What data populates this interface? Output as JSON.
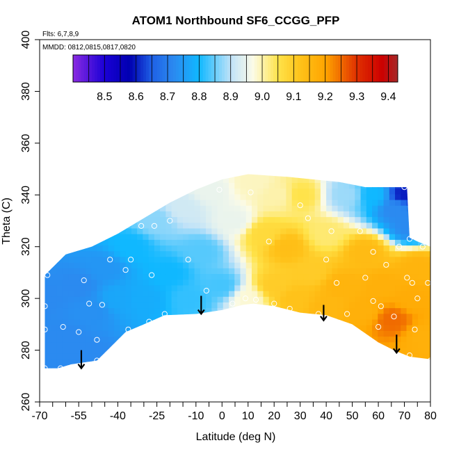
{
  "chart_data": {
    "type": "heatmap",
    "title": "ATOM1 Northbound SF6_CCGG_PFP",
    "xlabel": "Latitude (deg N)",
    "ylabel": "Theta (C)",
    "flights_note": "Flts: 6,7,8,9",
    "dates_note": "MMDD: 0812,0815,0817,0820",
    "xlim": [
      -70,
      80
    ],
    "ylim": [
      260,
      400
    ],
    "x_ticks": [
      {
        "value": -70,
        "label": "-70"
      },
      {
        "value": -55,
        "label": "-55"
      },
      {
        "value": -40,
        "label": "-40"
      },
      {
        "value": -25,
        "label": "-25"
      },
      {
        "value": -10,
        "label": "-10"
      },
      {
        "value": 0,
        "label": "0"
      },
      {
        "value": 10,
        "label": "10"
      },
      {
        "value": 20,
        "label": "20"
      },
      {
        "value": 30,
        "label": "30"
      },
      {
        "value": 40,
        "label": "40"
      },
      {
        "value": 50,
        "label": "50"
      },
      {
        "value": 60,
        "label": "60"
      },
      {
        "value": 70,
        "label": "70"
      },
      {
        "value": 80,
        "label": "80"
      }
    ],
    "x_minor_ticks": [
      -65,
      -60,
      -50,
      -45,
      -35,
      -30,
      -20,
      -15,
      -5,
      5,
      15,
      25,
      35,
      45,
      55,
      65,
      75
    ],
    "y_ticks": [
      {
        "value": 260,
        "label": "260"
      },
      {
        "value": 280,
        "label": "280"
      },
      {
        "value": 300,
        "label": "300"
      },
      {
        "value": 320,
        "label": "320"
      },
      {
        "value": 340,
        "label": "340"
      },
      {
        "value": 360,
        "label": "360"
      },
      {
        "value": 380,
        "label": "380"
      },
      {
        "value": 400,
        "label": "400"
      }
    ],
    "colorbar": {
      "min": 8.4,
      "max": 9.43,
      "ticks": [
        {
          "value": 8.5,
          "label": "8.5"
        },
        {
          "value": 8.6,
          "label": "8.6"
        },
        {
          "value": 8.7,
          "label": "8.7"
        },
        {
          "value": 8.8,
          "label": "8.8"
        },
        {
          "value": 8.9,
          "label": "8.9"
        },
        {
          "value": 9.0,
          "label": "9.0"
        },
        {
          "value": 9.1,
          "label": "9.1"
        },
        {
          "value": 9.2,
          "label": "9.2"
        },
        {
          "value": 9.3,
          "label": "9.3"
        },
        {
          "value": 9.4,
          "label": "9.4"
        }
      ],
      "stops": [
        {
          "value": 8.4,
          "color": "#8a2be2"
        },
        {
          "value": 8.5,
          "color": "#1a00d6"
        },
        {
          "value": 8.58,
          "color": "#0000b0"
        },
        {
          "value": 8.65,
          "color": "#1e60e6"
        },
        {
          "value": 8.72,
          "color": "#2b8af0"
        },
        {
          "value": 8.8,
          "color": "#10b8ff"
        },
        {
          "value": 8.9,
          "color": "#bfe2f8"
        },
        {
          "value": 8.97,
          "color": "#fbfbe8"
        },
        {
          "value": 9.05,
          "color": "#ffe34a"
        },
        {
          "value": 9.12,
          "color": "#ffc21a"
        },
        {
          "value": 9.2,
          "color": "#ffa500"
        },
        {
          "value": 9.3,
          "color": "#e03000"
        },
        {
          "value": 9.38,
          "color": "#cc0000"
        },
        {
          "value": 9.43,
          "color": "#a52a2a"
        }
      ]
    },
    "field_boundary": [
      [
        -68,
        273
      ],
      [
        -63,
        273
      ],
      [
        -58,
        274.5
      ],
      [
        -48,
        276
      ],
      [
        -44,
        280
      ],
      [
        -37,
        287
      ],
      [
        -30,
        290
      ],
      [
        -22,
        293.5
      ],
      [
        -10,
        294
      ],
      [
        0,
        295.5
      ],
      [
        8,
        297.5
      ],
      [
        12,
        298
      ],
      [
        20,
        297
      ],
      [
        30,
        294.5
      ],
      [
        40,
        293.5
      ],
      [
        50,
        290
      ],
      [
        60,
        283
      ],
      [
        66,
        280
      ],
      [
        72,
        277.5
      ],
      [
        80,
        276.5
      ],
      [
        80,
        320
      ],
      [
        75,
        322
      ],
      [
        72,
        323.5
      ],
      [
        71,
        343
      ],
      [
        55,
        343
      ],
      [
        45,
        345
      ],
      [
        35,
        346
      ],
      [
        25,
        347
      ],
      [
        10,
        348
      ],
      [
        0,
        346
      ],
      [
        -10,
        342
      ],
      [
        -20,
        337
      ],
      [
        -30,
        331
      ],
      [
        -40,
        325
      ],
      [
        -50,
        320
      ],
      [
        -60,
        317
      ],
      [
        -68,
        309
      ]
    ],
    "field_points": [
      {
        "lat": -68,
        "theta": 300,
        "value": 8.72
      },
      {
        "lat": -60,
        "theta": 285,
        "value": 8.72
      },
      {
        "lat": -55,
        "theta": 305,
        "value": 8.72
      },
      {
        "lat": -50,
        "theta": 295,
        "value": 8.73
      },
      {
        "lat": -45,
        "theta": 312,
        "value": 8.74
      },
      {
        "lat": -40,
        "theta": 300,
        "value": 8.77
      },
      {
        "lat": -35,
        "theta": 320,
        "value": 8.8
      },
      {
        "lat": -30,
        "theta": 300,
        "value": 8.78
      },
      {
        "lat": -25,
        "theta": 330,
        "value": 8.87
      },
      {
        "lat": -20,
        "theta": 310,
        "value": 8.8
      },
      {
        "lat": -15,
        "theta": 335,
        "value": 8.92
      },
      {
        "lat": -12,
        "theta": 300,
        "value": 8.82
      },
      {
        "lat": -8,
        "theta": 318,
        "value": 8.84
      },
      {
        "lat": -5,
        "theta": 342,
        "value": 8.95
      },
      {
        "lat": 0,
        "theta": 305,
        "value": 8.83
      },
      {
        "lat": 5,
        "theta": 330,
        "value": 8.95
      },
      {
        "lat": 10,
        "theta": 300,
        "value": 8.98
      },
      {
        "lat": 12,
        "theta": 345,
        "value": 8.99
      },
      {
        "lat": 16,
        "theta": 325,
        "value": 9.07
      },
      {
        "lat": 20,
        "theta": 305,
        "value": 9.1
      },
      {
        "lat": 22,
        "theta": 340,
        "value": 9.0
      },
      {
        "lat": 25,
        "theta": 320,
        "value": 9.13
      },
      {
        "lat": 28,
        "theta": 300,
        "value": 9.12
      },
      {
        "lat": 30,
        "theta": 340,
        "value": 9.05
      },
      {
        "lat": 35,
        "theta": 310,
        "value": 9.1
      },
      {
        "lat": 40,
        "theta": 325,
        "value": 9.03
      },
      {
        "lat": 40,
        "theta": 297,
        "value": 9.15
      },
      {
        "lat": 45,
        "theta": 305,
        "value": 9.16
      },
      {
        "lat": 48,
        "theta": 340,
        "value": 8.88
      },
      {
        "lat": 55,
        "theta": 318,
        "value": 9.14
      },
      {
        "lat": 55,
        "theta": 295,
        "value": 9.17
      },
      {
        "lat": 58,
        "theta": 340,
        "value": 8.8
      },
      {
        "lat": 62,
        "theta": 305,
        "value": 9.17
      },
      {
        "lat": 65,
        "theta": 292,
        "value": 9.25
      },
      {
        "lat": 67,
        "theta": 335,
        "value": 8.72
      },
      {
        "lat": 70,
        "theta": 340,
        "value": 8.6
      },
      {
        "lat": 72,
        "theta": 328,
        "value": 8.72
      },
      {
        "lat": 75,
        "theta": 312,
        "value": 9.16
      },
      {
        "lat": 78,
        "theta": 285,
        "value": 9.17
      },
      {
        "lat": 73,
        "theta": 300,
        "value": 9.18
      },
      {
        "lat": -65,
        "theta": 278,
        "value": 8.72
      },
      {
        "lat": -50,
        "theta": 278,
        "value": 8.72
      }
    ],
    "sample_points": [
      {
        "lat": -68,
        "theta": 288
      },
      {
        "lat": -68,
        "theta": 297
      },
      {
        "lat": -67,
        "theta": 309
      },
      {
        "lat": -68,
        "theta": 273
      },
      {
        "lat": -62,
        "theta": 273
      },
      {
        "lat": -61,
        "theta": 289
      },
      {
        "lat": -55,
        "theta": 287
      },
      {
        "lat": -53,
        "theta": 307
      },
      {
        "lat": -51,
        "theta": 298
      },
      {
        "lat": -48,
        "theta": 276
      },
      {
        "lat": -48,
        "theta": 284
      },
      {
        "lat": -46,
        "theta": 297.5
      },
      {
        "lat": -43,
        "theta": 315
      },
      {
        "lat": -37,
        "theta": 311
      },
      {
        "lat": -35,
        "theta": 315
      },
      {
        "lat": -36,
        "theta": 288
      },
      {
        "lat": -31,
        "theta": 328
      },
      {
        "lat": -28,
        "theta": 291
      },
      {
        "lat": -27,
        "theta": 309
      },
      {
        "lat": -26,
        "theta": 328
      },
      {
        "lat": -22,
        "theta": 294
      },
      {
        "lat": -20,
        "theta": 330
      },
      {
        "lat": -13,
        "theta": 315
      },
      {
        "lat": -6,
        "theta": 303
      },
      {
        "lat": -1,
        "theta": 342
      },
      {
        "lat": 4,
        "theta": 298
      },
      {
        "lat": 9,
        "theta": 300
      },
      {
        "lat": 11,
        "theta": 341
      },
      {
        "lat": 13,
        "theta": 299.5
      },
      {
        "lat": 18,
        "theta": 322
      },
      {
        "lat": 20,
        "theta": 298
      },
      {
        "lat": 26,
        "theta": 296
      },
      {
        "lat": 30,
        "theta": 336
      },
      {
        "lat": 33,
        "theta": 331
      },
      {
        "lat": 37,
        "theta": 294
      },
      {
        "lat": 40,
        "theta": 315
      },
      {
        "lat": 42,
        "theta": 326
      },
      {
        "lat": 44,
        "theta": 306
      },
      {
        "lat": 48,
        "theta": 294
      },
      {
        "lat": 53,
        "theta": 326
      },
      {
        "lat": 55,
        "theta": 308
      },
      {
        "lat": 58,
        "theta": 299
      },
      {
        "lat": 58,
        "theta": 318
      },
      {
        "lat": 61,
        "theta": 297
      },
      {
        "lat": 63,
        "theta": 313
      },
      {
        "lat": 66,
        "theta": 293
      },
      {
        "lat": 68,
        "theta": 320
      },
      {
        "lat": 71,
        "theta": 308
      },
      {
        "lat": 72,
        "theta": 323
      },
      {
        "lat": 72,
        "theta": 278
      },
      {
        "lat": 74,
        "theta": 288
      },
      {
        "lat": 75,
        "theta": 300
      },
      {
        "lat": 77,
        "theta": 320
      },
      {
        "lat": 79,
        "theta": 306
      },
      {
        "lat": 80,
        "theta": 276
      },
      {
        "lat": 73,
        "theta": 306
      },
      {
        "lat": 60,
        "theta": 289
      },
      {
        "lat": 70,
        "theta": 343
      }
    ],
    "arrows": [
      {
        "lat": -54,
        "theta_top": 280,
        "theta_tip": 273
      },
      {
        "lat": -8,
        "theta_top": 301,
        "theta_tip": 294
      },
      {
        "lat": 39,
        "theta_top": 297.5,
        "theta_tip": 291.5
      },
      {
        "lat": 67,
        "theta_top": 286,
        "theta_tip": 279
      }
    ]
  }
}
